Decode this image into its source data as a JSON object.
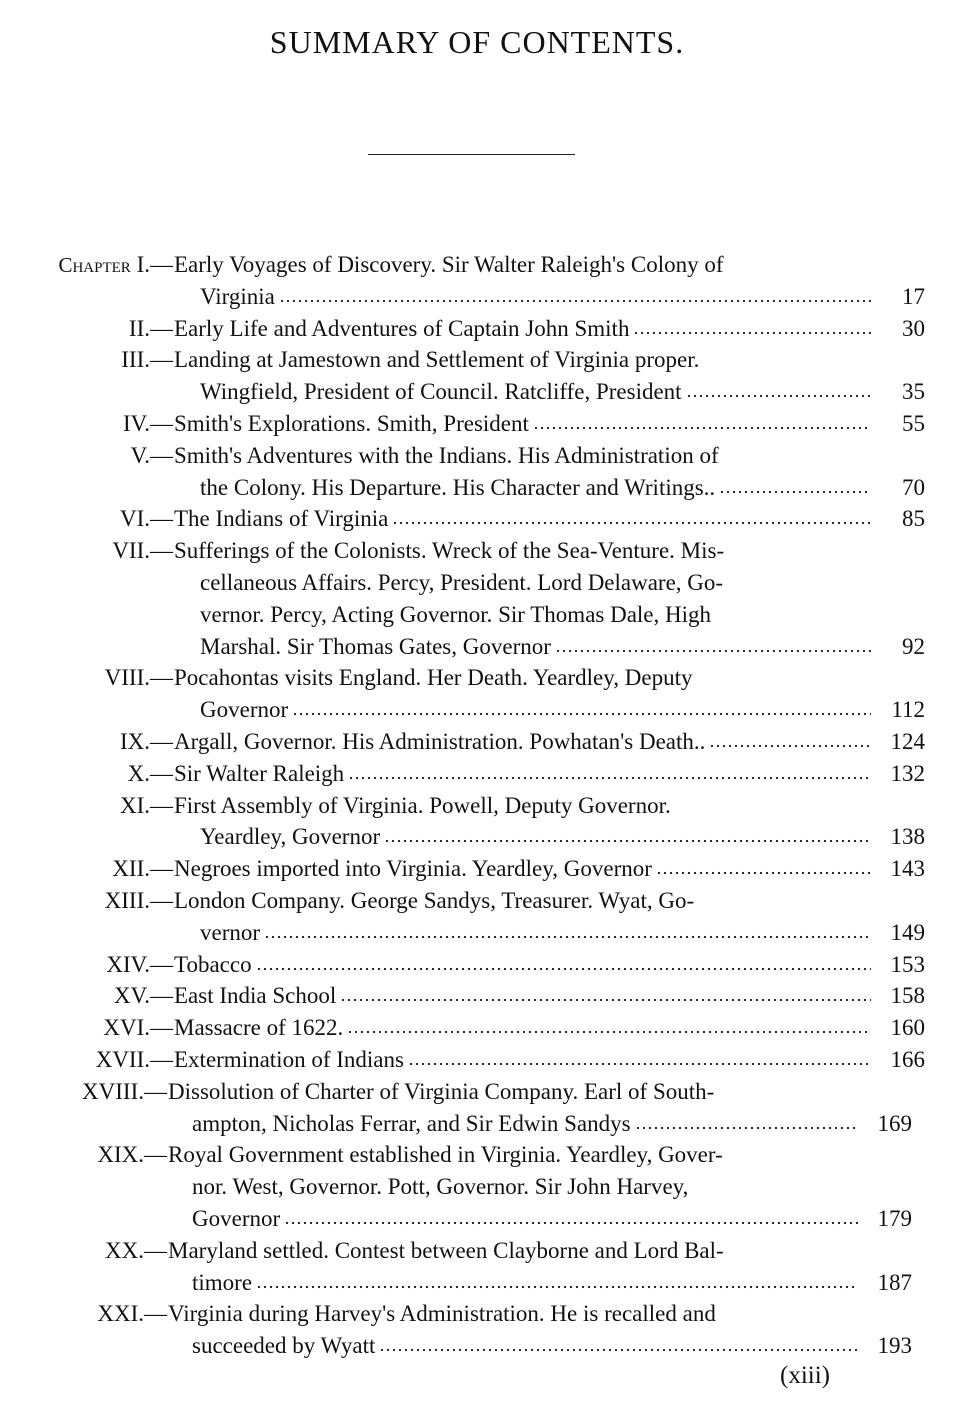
{
  "title": "SUMMARY OF CONTENTS.",
  "chapter_label": "Chapter",
  "entries": [
    {
      "num": "I.—",
      "lines": [
        "Early Voyages of Discovery.  Sir Walter Raleigh's Colony of",
        "Virginia"
      ],
      "page": "17"
    },
    {
      "num": "II.—",
      "lines": [
        "Early Life and Adventures of Captain John Smith"
      ],
      "page": "30"
    },
    {
      "num": "III.—",
      "lines": [
        "Landing at Jamestown and Settlement of Virginia proper.",
        "Wingfield, President of Council.  Ratcliffe, President"
      ],
      "page": "35"
    },
    {
      "num": "IV.—",
      "lines": [
        "Smith's Explorations.  Smith, President"
      ],
      "page": "55"
    },
    {
      "num": "V.—",
      "lines": [
        "Smith's Adventures with the Indians.  His Administration of",
        "the Colony.  His Departure.  His Character and Writings.."
      ],
      "page": "70"
    },
    {
      "num": "VI.—",
      "lines": [
        "The Indians of Virginia"
      ],
      "page": "85"
    },
    {
      "num": "VII.—",
      "lines": [
        "Sufferings of the Colonists.  Wreck of the Sea-Venture.  Mis-",
        "cellaneous Affairs.  Percy, President.  Lord Delaware, Go-",
        "vernor.  Percy, Acting Governor.  Sir Thomas Dale, High",
        "Marshal.  Sir Thomas Gates, Governor"
      ],
      "page": "92"
    },
    {
      "num": "VIII.—",
      "lines": [
        "Pocahontas visits England.  Her Death.  Yeardley, Deputy",
        "Governor"
      ],
      "page": "112"
    },
    {
      "num": "IX.—",
      "lines": [
        "Argall, Governor.  His Administration.  Powhatan's Death.."
      ],
      "page": "124"
    },
    {
      "num": "X.—",
      "lines": [
        "Sir Walter Raleigh"
      ],
      "page": "132"
    },
    {
      "num": "XI.—",
      "lines": [
        "First Assembly of Virginia.  Powell, Deputy Governor.",
        "Yeardley, Governor"
      ],
      "page": "138"
    },
    {
      "num": "XII.—",
      "lines": [
        "Negroes imported into Virginia.  Yeardley, Governor"
      ],
      "page": "143"
    },
    {
      "num": "XIII.—",
      "lines": [
        "London Company.  George Sandys, Treasurer.  Wyat, Go-",
        "vernor"
      ],
      "page": "149"
    },
    {
      "num": "XIV.—",
      "lines": [
        "Tobacco"
      ],
      "page": "153"
    },
    {
      "num": "XV.—",
      "lines": [
        "East India School"
      ],
      "page": "158"
    },
    {
      "num": "XVI.—",
      "lines": [
        "Massacre of 1622."
      ],
      "page": "160"
    },
    {
      "num": "XVII.—",
      "lines": [
        "Extermination of Indians"
      ],
      "page": "166"
    },
    {
      "num": "XVIII.—",
      "lines": [
        "Dissolution of Charter of Virginia Company.  Earl of South-",
        "ampton, Nicholas Ferrar, and Sir Edwin Sandys"
      ],
      "page": "169"
    },
    {
      "num": "XIX.—",
      "lines": [
        "Royal Government established in Virginia.  Yeardley, Gover-",
        "nor.  West, Governor.  Pott, Governor.  Sir John Harvey,",
        "Governor"
      ],
      "page": "179"
    },
    {
      "num": "XX.—",
      "lines": [
        "Maryland settled.  Contest between Clayborne and Lord Bal-",
        "timore"
      ],
      "page": "187"
    },
    {
      "num": "XXI.—",
      "lines": [
        "Virginia during Harvey's Administration.  He is recalled and",
        "succeeded by Wyatt"
      ],
      "page": "193"
    }
  ],
  "folio": "(xiii)"
}
